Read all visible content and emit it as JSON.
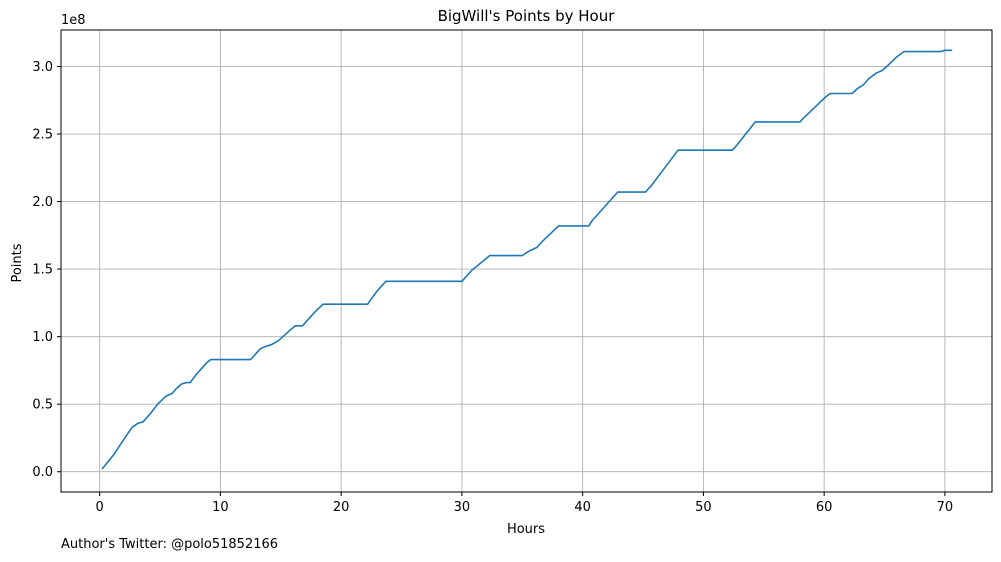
{
  "chart_data": {
    "type": "line",
    "title": "BigWill's Points by Hour",
    "xlabel": "Hours",
    "ylabel": "Points",
    "y_multiplier_label": "1e8",
    "x_ticks": [
      0,
      10,
      20,
      30,
      40,
      50,
      60,
      70
    ],
    "x_tick_labels": [
      "0",
      "10",
      "20",
      "30",
      "40",
      "50",
      "60",
      "70"
    ],
    "y_ticks": [
      0.0,
      0.5,
      1.0,
      1.5,
      2.0,
      2.5,
      3.0
    ],
    "y_tick_labels": [
      "0.0",
      "0.5",
      "1.0",
      "1.5",
      "2.0",
      "2.5",
      "3.0"
    ],
    "xlim": [
      -3.2,
      73.9
    ],
    "ylim": [
      -0.15,
      3.27
    ],
    "grid": true,
    "series": [
      {
        "color": "#1f77b4",
        "x": [
          0.2,
          1.2,
          2.0,
          2.7,
          3.2,
          3.6,
          4.2,
          4.8,
          5.5,
          6.0,
          6.4,
          6.8,
          7.2,
          7.5,
          8.0,
          8.5,
          8.9,
          9.2,
          12.5,
          12.8,
          13.3,
          13.8,
          14.2,
          14.8,
          15.3,
          15.8,
          16.2,
          16.8,
          17.2,
          17.8,
          18.5,
          22.2,
          22.5,
          23.0,
          23.7,
          30.0,
          30.8,
          32.3,
          35.0,
          35.5,
          36.2,
          36.6,
          37.2,
          38.0,
          40.5,
          40.8,
          41.8,
          42.9,
          45.2,
          45.7,
          46.8,
          47.9,
          52.4,
          52.8,
          54.3,
          58.0,
          58.2,
          58.9,
          59.6,
          60.2,
          60.5,
          62.3,
          62.8,
          63.2,
          63.7,
          64.3,
          64.8,
          65.3,
          66.0,
          66.6,
          69.6,
          70.0,
          70.6
        ],
        "y": [
          0.02,
          0.13,
          0.24,
          0.33,
          0.36,
          0.37,
          0.43,
          0.5,
          0.56,
          0.58,
          0.62,
          0.65,
          0.66,
          0.66,
          0.72,
          0.77,
          0.81,
          0.83,
          0.83,
          0.86,
          0.91,
          0.93,
          0.94,
          0.97,
          1.01,
          1.05,
          1.08,
          1.08,
          1.12,
          1.18,
          1.24,
          1.24,
          1.28,
          1.34,
          1.41,
          1.41,
          1.49,
          1.6,
          1.6,
          1.63,
          1.66,
          1.7,
          1.75,
          1.82,
          1.82,
          1.86,
          1.96,
          2.07,
          2.07,
          2.12,
          2.25,
          2.38,
          2.38,
          2.42,
          2.59,
          2.59,
          2.61,
          2.67,
          2.73,
          2.78,
          2.8,
          2.8,
          2.84,
          2.86,
          2.91,
          2.95,
          2.97,
          3.01,
          3.07,
          3.11,
          3.11,
          3.12,
          3.12
        ]
      }
    ]
  },
  "footnote": "Author's Twitter: @polo51852166"
}
